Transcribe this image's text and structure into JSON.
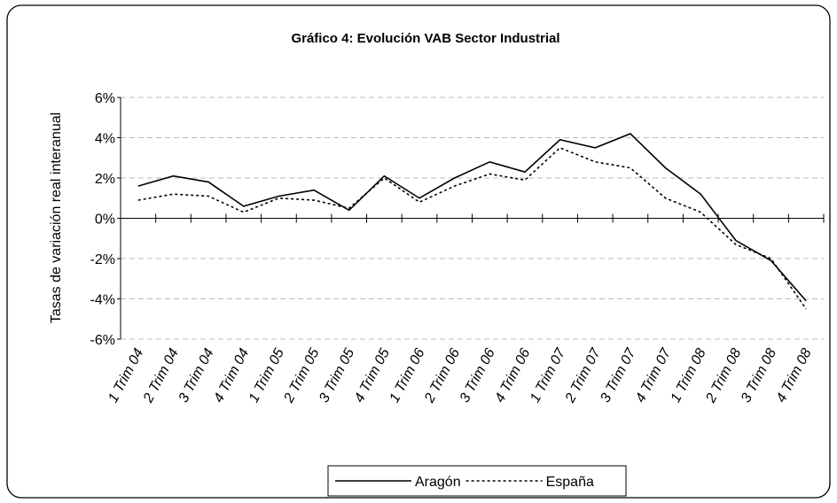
{
  "chart_data": {
    "type": "line",
    "title": "Gráfico 4: Evolución VAB Sector Industrial",
    "y_label": "Tasas de variación real interanual",
    "categories": [
      "1 Trim 04",
      "2 Trim 04",
      "3 Trim 04",
      "4 Trim 04",
      "1 Trim 05",
      "2 Trim 05",
      "3 Trim 05",
      "4 Trim 05",
      "1 Trim 06",
      "2 Trim 06",
      "3 Trim 06",
      "4 Trim 06",
      "1 Trim 07",
      "2 Trim 07",
      "3 Trim 07",
      "4 Trim 07",
      "1 Trim 08",
      "2 Trim 08",
      "3 Trim 08",
      "4 Trim 08"
    ],
    "series": [
      {
        "name": "Aragón",
        "color": "#000000",
        "dash": "none",
        "values": [
          1.6,
          2.1,
          1.8,
          0.6,
          1.1,
          1.4,
          0.4,
          2.1,
          1.0,
          2.0,
          2.8,
          2.3,
          3.9,
          3.5,
          4.2,
          2.5,
          1.2,
          -1.1,
          -2.1,
          -4.1
        ]
      },
      {
        "name": "España",
        "color": "#000000",
        "dash": "3,3",
        "values": [
          0.9,
          1.2,
          1.1,
          0.3,
          1.0,
          0.9,
          0.5,
          2.0,
          0.8,
          1.6,
          2.2,
          1.9,
          3.5,
          2.8,
          2.5,
          1.0,
          0.3,
          -1.3,
          -2.0,
          -4.5
        ]
      }
    ],
    "ylim": [
      -6,
      6
    ],
    "yticks": [
      {
        "value": -6,
        "label": "-6%"
      },
      {
        "value": -4,
        "label": "-4%"
      },
      {
        "value": -2,
        "label": "-2%"
      },
      {
        "value": 0,
        "label": "0%"
      },
      {
        "value": 2,
        "label": "2%"
      },
      {
        "value": 4,
        "label": "4%"
      },
      {
        "value": 6,
        "label": "6%"
      }
    ],
    "grid": true,
    "legend": "bottom"
  }
}
